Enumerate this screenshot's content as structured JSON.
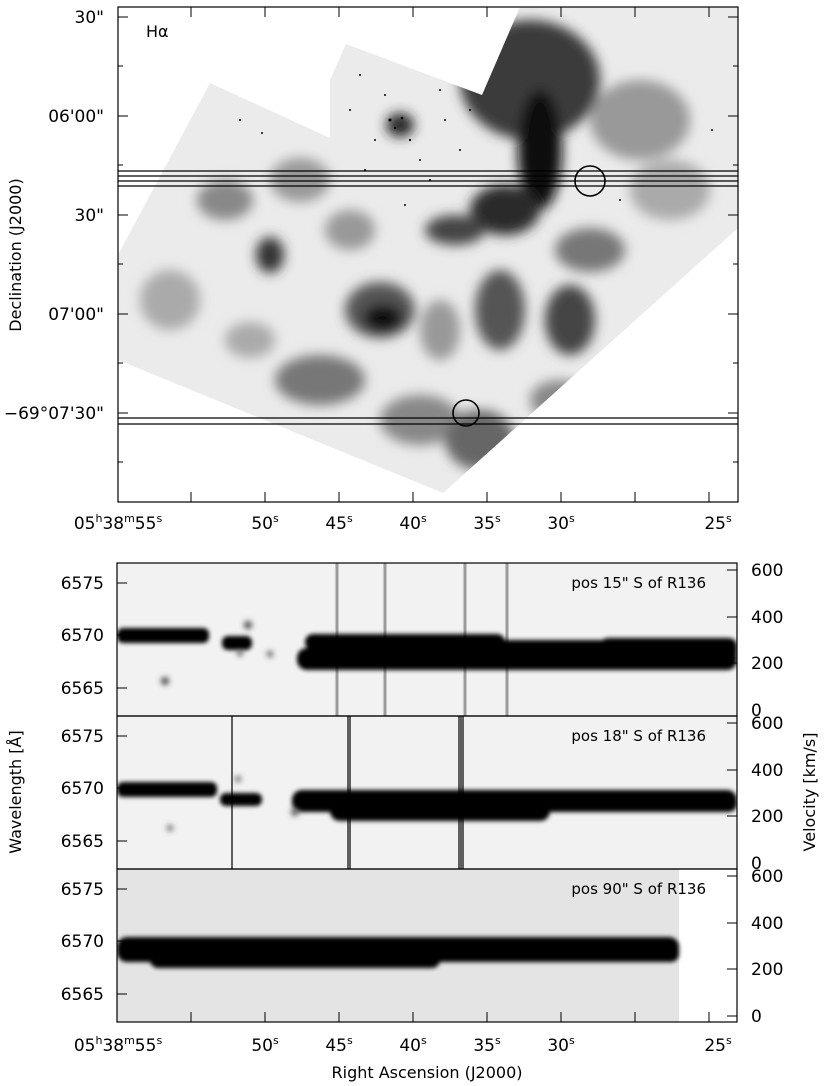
{
  "figure": {
    "top_panel": {
      "label": "Hα",
      "ylabel": "Declination (J2000)",
      "dec_ticks": [
        "30\"",
        "06'00\"",
        "30\"",
        "07'00\"",
        "−69°07'30\""
      ],
      "ra_ticks": [
        {
          "h": "05",
          "hs": "h",
          "m": "38",
          "ms": "m",
          "s": "55",
          "ss": "s"
        },
        {
          "s": "50",
          "ss": "s"
        },
        {
          "s": "45",
          "ss": "s"
        },
        {
          "s": "40",
          "ss": "s"
        },
        {
          "s": "35",
          "ss": "s"
        },
        {
          "s": "30",
          "ss": "s"
        },
        {
          "s": "25",
          "ss": "s"
        }
      ],
      "slit_positions_note": [
        "pos 15\" S of R136",
        "pos 18\" S of R136",
        "pos 90\" S of R136"
      ]
    },
    "spectra": {
      "ylabel_left": "Wavelength [Å]",
      "ylabel_right": "Velocity [km/s]",
      "xlabel": "Right Ascension (J2000)",
      "wavelength_ticks": [
        "6575",
        "6570",
        "6565"
      ],
      "velocity_ticks": [
        "600",
        "400",
        "200",
        "0"
      ],
      "panels": [
        {
          "label": "pos 15\" S of R136"
        },
        {
          "label": "pos 18\" S of R136"
        },
        {
          "label": "pos 90\" S of R136"
        }
      ],
      "ra_ticks": [
        {
          "h": "05",
          "hs": "h",
          "m": "38",
          "ms": "m",
          "s": "55",
          "ss": "s"
        },
        {
          "s": "50",
          "ss": "s"
        },
        {
          "s": "45",
          "ss": "s"
        },
        {
          "s": "40",
          "ss": "s"
        },
        {
          "s": "35",
          "ss": "s"
        },
        {
          "s": "30",
          "ss": "s"
        },
        {
          "s": "25",
          "ss": "s"
        }
      ]
    }
  }
}
